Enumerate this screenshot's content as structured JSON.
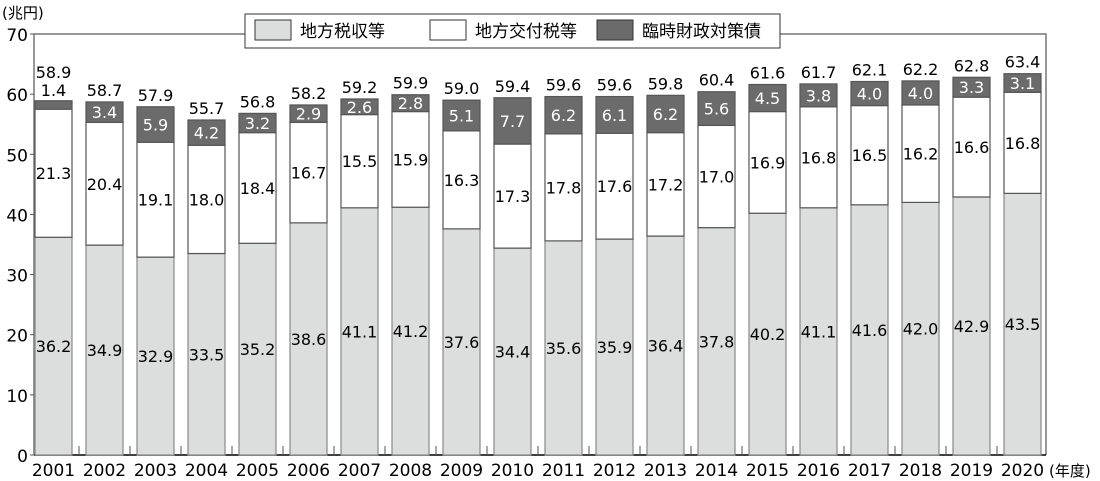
{
  "chart_data": {
    "type": "bar",
    "stacked": true,
    "ylabel": "(兆円)",
    "xlabel": "(年度)",
    "ylim": [
      0,
      70
    ],
    "yticks": [
      0,
      10,
      20,
      30,
      40,
      50,
      60,
      70
    ],
    "grid": false,
    "legend_placement": "top-center",
    "categories": [
      "2001",
      "2002",
      "2003",
      "2004",
      "2005",
      "2006",
      "2007",
      "2008",
      "2009",
      "2010",
      "2011",
      "2012",
      "2013",
      "2014",
      "2015",
      "2016",
      "2017",
      "2018",
      "2019",
      "2020"
    ],
    "series": [
      {
        "name": "地方税収等",
        "color": "#dcdedd",
        "label_color": "#000000",
        "values": [
          36.2,
          34.9,
          32.9,
          33.5,
          35.2,
          38.6,
          41.1,
          41.2,
          37.6,
          34.4,
          35.6,
          35.9,
          36.4,
          37.8,
          40.2,
          41.1,
          41.6,
          42.0,
          42.9,
          43.5
        ]
      },
      {
        "name": "地方交付税等",
        "color": "#ffffff",
        "label_color": "#000000",
        "values": [
          21.3,
          20.4,
          19.1,
          18.0,
          18.4,
          16.7,
          15.5,
          15.9,
          16.3,
          17.3,
          17.8,
          17.6,
          17.2,
          17.0,
          16.9,
          16.8,
          16.5,
          16.2,
          16.6,
          16.8
        ]
      },
      {
        "name": "臨時財政対策債",
        "color": "#6b6b6b",
        "label_color": "#ffffff",
        "values": [
          1.4,
          3.4,
          5.9,
          4.2,
          3.2,
          2.9,
          2.6,
          2.8,
          5.1,
          7.7,
          6.2,
          6.1,
          6.2,
          5.6,
          4.5,
          3.8,
          4.0,
          4.0,
          3.3,
          3.1
        ]
      }
    ],
    "totals": [
      58.9,
      58.7,
      57.9,
      55.7,
      56.8,
      58.2,
      59.2,
      59.9,
      59.0,
      59.4,
      59.6,
      59.6,
      59.8,
      60.4,
      61.6,
      61.7,
      62.1,
      62.2,
      62.8,
      63.4
    ]
  }
}
